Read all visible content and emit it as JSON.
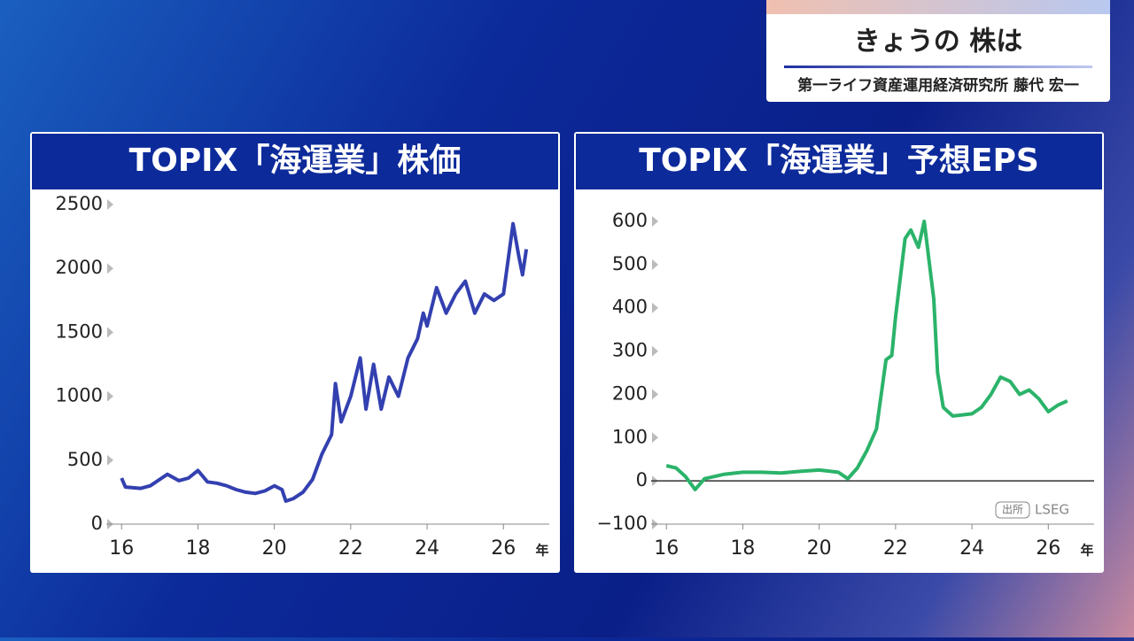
{
  "header": {
    "title": "きょうの 株は",
    "subtitle": "第一ライフ資産運用経済研究所 藤代 宏一"
  },
  "source": {
    "label": "出所",
    "name": "LSEG"
  },
  "chart_data": [
    {
      "type": "line",
      "title": "TOPIX「海運業」株価",
      "x_unit": "年",
      "color": "#3340b0",
      "x": [
        16.0,
        16.1,
        16.5,
        16.75,
        17.0,
        17.2,
        17.5,
        17.75,
        18.0,
        18.25,
        18.5,
        18.75,
        19.0,
        19.25,
        19.5,
        19.75,
        20.0,
        20.2,
        20.3,
        20.5,
        20.75,
        21.0,
        21.25,
        21.5,
        21.6,
        21.75,
        22.0,
        22.25,
        22.4,
        22.6,
        22.8,
        23.0,
        23.25,
        23.5,
        23.75,
        23.9,
        24.0,
        24.25,
        24.5,
        24.75,
        25.0,
        25.25,
        25.5,
        25.75,
        26.0,
        26.25,
        26.4,
        26.5,
        26.6
      ],
      "values": [
        360,
        290,
        280,
        300,
        350,
        390,
        340,
        360,
        420,
        330,
        320,
        300,
        270,
        250,
        240,
        260,
        300,
        270,
        180,
        200,
        250,
        350,
        550,
        700,
        1100,
        800,
        1000,
        1300,
        900,
        1250,
        900,
        1150,
        1000,
        1300,
        1450,
        1650,
        1550,
        1850,
        1650,
        1800,
        1900,
        1650,
        1800,
        1750,
        1800,
        2350,
        2100,
        1950,
        2150
      ],
      "xlim": [
        15.6,
        27.2
      ],
      "xticks": [
        16,
        18,
        20,
        22,
        24,
        26
      ],
      "ylim": [
        0,
        2500
      ],
      "yticks": [
        0,
        500,
        1000,
        1500,
        2000,
        2500
      ]
    },
    {
      "type": "line",
      "title": "TOPIX「海運業」予想EPS",
      "x_unit": "年",
      "color": "#2bb36a",
      "zero_line": true,
      "x": [
        16.0,
        16.25,
        16.5,
        16.75,
        17.0,
        17.5,
        18.0,
        18.5,
        19.0,
        19.5,
        20.0,
        20.5,
        20.75,
        21.0,
        21.25,
        21.5,
        21.75,
        21.9,
        22.0,
        22.25,
        22.4,
        22.6,
        22.75,
        23.0,
        23.1,
        23.25,
        23.5,
        24.0,
        24.25,
        24.5,
        24.75,
        25.0,
        25.25,
        25.5,
        25.75,
        26.0,
        26.25,
        26.5
      ],
      "values": [
        35,
        30,
        10,
        -20,
        5,
        15,
        20,
        20,
        18,
        22,
        25,
        20,
        5,
        30,
        70,
        120,
        280,
        290,
        380,
        560,
        580,
        540,
        600,
        420,
        250,
        170,
        150,
        155,
        170,
        200,
        240,
        230,
        200,
        210,
        190,
        160,
        175,
        185
      ],
      "xlim": [
        15.6,
        27.2
      ],
      "xticks": [
        16,
        18,
        20,
        22,
        24,
        26
      ],
      "ylim": [
        -100,
        600
      ],
      "yticks": [
        {
          "value": -100,
          "label": "−100"
        },
        0,
        100,
        200,
        300,
        400,
        500,
        600
      ]
    }
  ]
}
